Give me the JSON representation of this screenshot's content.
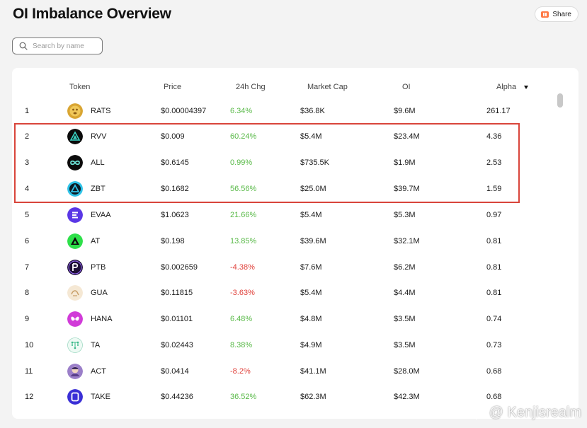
{
  "page": {
    "title": "OI Imbalance Overview"
  },
  "share": {
    "label": "Share"
  },
  "search": {
    "placeholder": "Search by name",
    "value": ""
  },
  "table": {
    "columns": {
      "token": "Token",
      "price": "Price",
      "change_24h": "24h Chg",
      "market_cap": "Market Cap",
      "oi": "OI",
      "alpha": "Alpha"
    },
    "sort": {
      "column": "alpha",
      "direction": "desc"
    },
    "rows": [
      {
        "rank": "1",
        "token": "RATS",
        "price": "$0.00004397",
        "change": "6.34%",
        "trend": "up",
        "market_cap": "$36.8K",
        "oi": "$9.6M",
        "alpha": "261.17",
        "icon": "rats-coin-icon",
        "icon_color": "#d9a532"
      },
      {
        "rank": "2",
        "token": "RVV",
        "price": "$0.009",
        "change": "60.24%",
        "trend": "up",
        "market_cap": "$5.4M",
        "oi": "$23.4M",
        "alpha": "4.36",
        "icon": "rvv-triangle-icon",
        "icon_color": "#0c0c0c"
      },
      {
        "rank": "3",
        "token": "ALL",
        "price": "$0.6145",
        "change": "0.99%",
        "trend": "up",
        "market_cap": "$735.5K",
        "oi": "$1.9M",
        "alpha": "2.53",
        "icon": "all-infinity-icon",
        "icon_color": "#0c0c0c"
      },
      {
        "rank": "4",
        "token": "ZBT",
        "price": "$0.1682",
        "change": "56.56%",
        "trend": "up",
        "market_cap": "$25.0M",
        "oi": "$39.7M",
        "alpha": "1.59",
        "icon": "zbt-triangle-icon",
        "icon_color": "#2fc3e8"
      },
      {
        "rank": "5",
        "token": "EVAA",
        "price": "$1.0623",
        "change": "21.66%",
        "trend": "up",
        "market_cap": "$5.4M",
        "oi": "$5.3M",
        "alpha": "0.97",
        "icon": "evaa-e-icon",
        "icon_color": "#5a37e6"
      },
      {
        "rank": "6",
        "token": "AT",
        "price": "$0.198",
        "change": "13.85%",
        "trend": "up",
        "market_cap": "$39.6M",
        "oi": "$32.1M",
        "alpha": "0.81",
        "icon": "at-triangle-icon",
        "icon_color": "#2ee04a"
      },
      {
        "rank": "7",
        "token": "PTB",
        "price": "$0.002659",
        "change": "-4.38%",
        "trend": "down",
        "market_cap": "$7.6M",
        "oi": "$6.2M",
        "alpha": "0.81",
        "icon": "ptb-p-icon",
        "icon_color": "#1e1035"
      },
      {
        "rank": "8",
        "token": "GUA",
        "price": "$0.11815",
        "change": "-3.63%",
        "trend": "down",
        "market_cap": "$5.4M",
        "oi": "$4.4M",
        "alpha": "0.81",
        "icon": "gua-logo-icon",
        "icon_color": "#f5e8d4"
      },
      {
        "rank": "9",
        "token": "HANA",
        "price": "$0.01101",
        "change": "6.48%",
        "trend": "up",
        "market_cap": "$4.8M",
        "oi": "$3.5M",
        "alpha": "0.74",
        "icon": "hana-butterfly-icon",
        "icon_color": "#d13bd8"
      },
      {
        "rank": "10",
        "token": "TA",
        "price": "$0.02443",
        "change": "8.38%",
        "trend": "up",
        "market_cap": "$4.9M",
        "oi": "$3.5M",
        "alpha": "0.73",
        "icon": "ta-network-icon",
        "icon_color": "#eefaf4"
      },
      {
        "rank": "11",
        "token": "ACT",
        "price": "$0.0414",
        "change": "-8.2%",
        "trend": "down",
        "market_cap": "$41.1M",
        "oi": "$28.0M",
        "alpha": "0.68",
        "icon": "act-avatar-icon",
        "icon_color": "#9b7fc9"
      },
      {
        "rank": "12",
        "token": "TAKE",
        "price": "$0.44236",
        "change": "36.52%",
        "trend": "up",
        "market_cap": "$62.3M",
        "oi": "$42.3M",
        "alpha": "0.68",
        "icon": "take-square-icon",
        "icon_color": "#3a2fd6"
      }
    ],
    "highlighted_rows": [
      "2",
      "3",
      "4"
    ]
  },
  "colors": {
    "positive": "#58b947",
    "negative": "#e0403a",
    "highlight": "#d9453b",
    "share_accent": "#ff7a45"
  },
  "watermark": {
    "text": "@ Kenjisrealm"
  }
}
